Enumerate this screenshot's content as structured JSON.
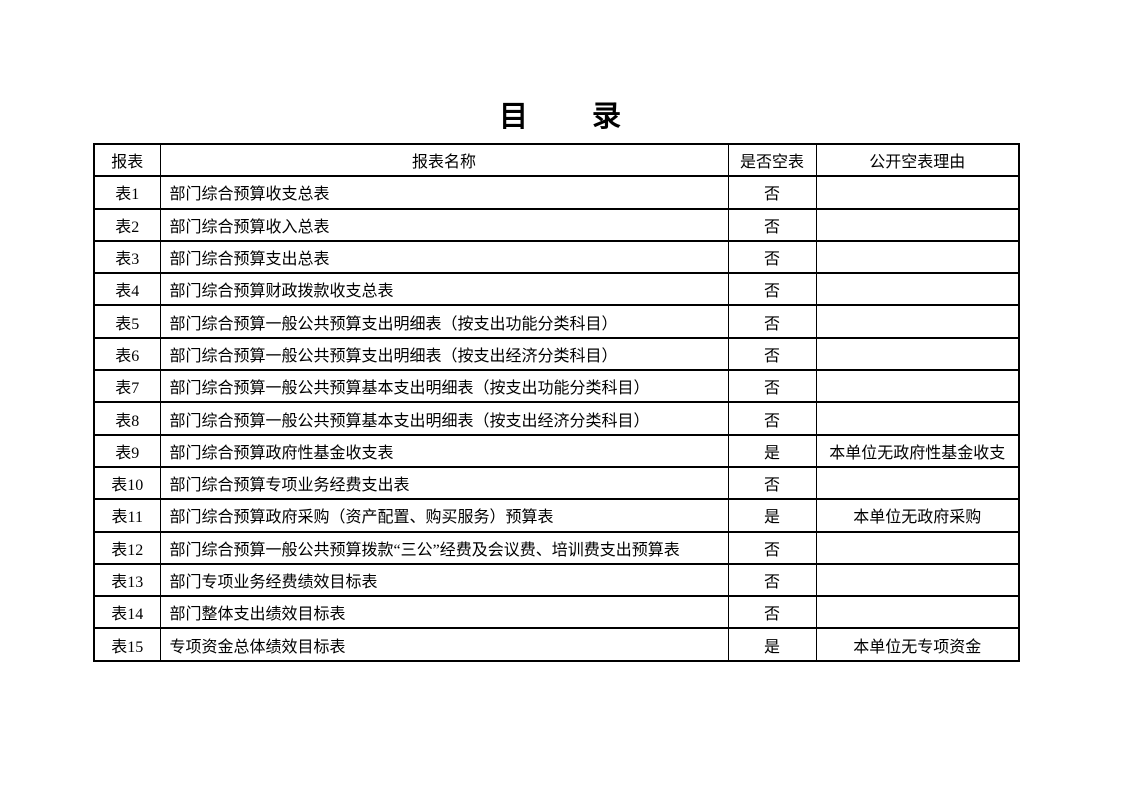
{
  "page": {
    "title": "目　　录"
  },
  "table": {
    "headers": {
      "report": "报表",
      "name": "报表名称",
      "is_empty": "是否空表",
      "reason": "公开空表理由"
    },
    "rows": [
      {
        "id": "表1",
        "name": "部门综合预算收支总表",
        "is_empty": "否",
        "reason": ""
      },
      {
        "id": "表2",
        "name": "部门综合预算收入总表",
        "is_empty": "否",
        "reason": ""
      },
      {
        "id": "表3",
        "name": "部门综合预算支出总表",
        "is_empty": "否",
        "reason": ""
      },
      {
        "id": "表4",
        "name": "部门综合预算财政拨款收支总表",
        "is_empty": "否",
        "reason": ""
      },
      {
        "id": "表5",
        "name": "部门综合预算一般公共预算支出明细表（按支出功能分类科目）",
        "is_empty": "否",
        "reason": ""
      },
      {
        "id": "表6",
        "name": "部门综合预算一般公共预算支出明细表（按支出经济分类科目）",
        "is_empty": "否",
        "reason": ""
      },
      {
        "id": "表7",
        "name": "部门综合预算一般公共预算基本支出明细表（按支出功能分类科目）",
        "is_empty": "否",
        "reason": ""
      },
      {
        "id": "表8",
        "name": "部门综合预算一般公共预算基本支出明细表（按支出经济分类科目）",
        "is_empty": "否",
        "reason": ""
      },
      {
        "id": "表9",
        "name": "部门综合预算政府性基金收支表",
        "is_empty": "是",
        "reason": "本单位无政府性基金收支"
      },
      {
        "id": "表10",
        "name": "部门综合预算专项业务经费支出表",
        "is_empty": "否",
        "reason": ""
      },
      {
        "id": "表11",
        "name": "部门综合预算政府采购（资产配置、购买服务）预算表",
        "is_empty": "是",
        "reason": "本单位无政府采购"
      },
      {
        "id": "表12",
        "name": "部门综合预算一般公共预算拨款“三公”经费及会议费、培训费支出预算表",
        "is_empty": "否",
        "reason": ""
      },
      {
        "id": "表13",
        "name": "部门专项业务经费绩效目标表",
        "is_empty": "否",
        "reason": ""
      },
      {
        "id": "表14",
        "name": "部门整体支出绩效目标表",
        "is_empty": "否",
        "reason": ""
      },
      {
        "id": "表15",
        "name": "专项资金总体绩效目标表",
        "is_empty": "是",
        "reason": "本单位无专项资金"
      }
    ]
  }
}
